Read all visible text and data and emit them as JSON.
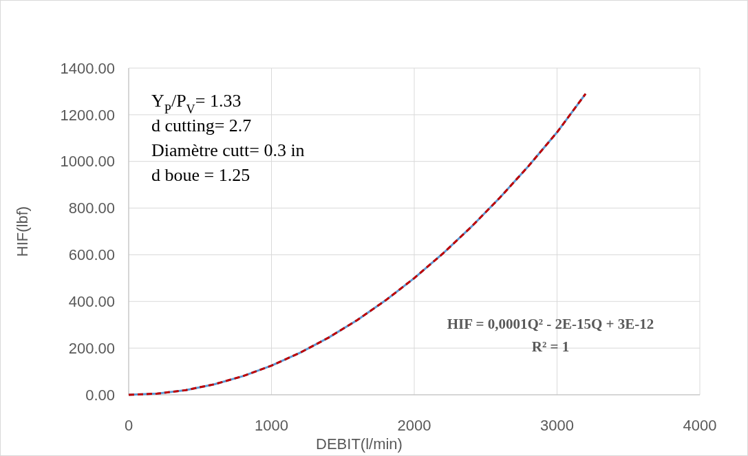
{
  "chart_data": {
    "type": "line",
    "xlabel": "DEBIT(l/min)",
    "ylabel": "HIF(lbf)",
    "xlim": [
      0,
      4000
    ],
    "xticks": [
      0,
      1000,
      2000,
      3000,
      4000
    ],
    "ylim": [
      0,
      1400
    ],
    "yticks": [
      {
        "value": 0,
        "label": "0.00"
      },
      {
        "value": 200,
        "label": "200.00"
      },
      {
        "value": 400,
        "label": "400.00"
      },
      {
        "value": 600,
        "label": "600.00"
      },
      {
        "value": 800,
        "label": "800.00"
      },
      {
        "value": 1000,
        "label": "1000.00"
      },
      {
        "value": 1200,
        "label": "1200.00"
      },
      {
        "value": 1400,
        "label": "1400.00"
      }
    ],
    "grid": true,
    "marker": "none",
    "series": [
      {
        "color": "#5b9bd5",
        "line_style": "solid",
        "x": [
          0,
          200,
          400,
          600,
          800,
          1000,
          1200,
          1400,
          1600,
          1800,
          2000,
          2200,
          2400,
          2600,
          2800,
          3000,
          3200
        ],
        "values": [
          0,
          5,
          20,
          45,
          80,
          125,
          180,
          245,
          320,
          405,
          500,
          605,
          720,
          845,
          980,
          1125,
          1290
        ]
      },
      {
        "color": "#c00000",
        "line_style": "dashed",
        "x": [
          0,
          200,
          400,
          600,
          800,
          1000,
          1200,
          1400,
          1600,
          1800,
          2000,
          2200,
          2400,
          2600,
          2800,
          3000,
          3200
        ],
        "values": [
          0,
          5,
          20,
          45,
          80,
          125,
          180,
          245,
          320,
          405,
          500,
          605,
          720,
          845,
          980,
          1125,
          1290
        ]
      }
    ],
    "annotations": [
      "Y$_{P}$/P$_{V}$= 1.33",
      "d cutting= 2.7",
      "Diamètre cutt= 0.3 in",
      "d boue = 1.25",
      "HIF = 0,0001Q² - 2E-15Q + 3E-12",
      "R² = 1"
    ]
  }
}
